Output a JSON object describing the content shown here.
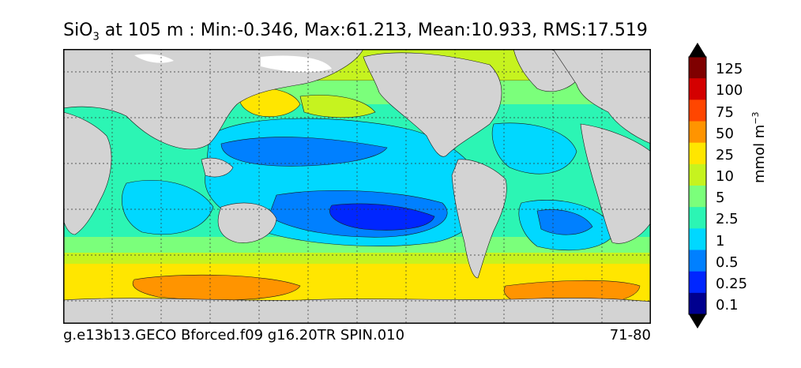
{
  "title": {
    "species": "SiO",
    "species_sub": "3",
    "rest": " at 105 m : Min:-0.346, Max:61.213, Mean:10.933, RMS:17.519"
  },
  "footer": {
    "left": "g.e13b13.GECO Bforced.f09 g16.20TR SPIN.010",
    "right": "71-80"
  },
  "colorbar": {
    "units_main": "mmol m",
    "units_sup": "−3",
    "labels": [
      "125",
      "100",
      "75",
      "50",
      "25",
      "10",
      "5",
      "2.5",
      "1",
      "0.5",
      "0.25",
      "0.1"
    ],
    "colors": [
      "#7f0000",
      "#d40000",
      "#ff4600",
      "#ff9400",
      "#ffe600",
      "#c6f31f",
      "#7bff7b",
      "#2cf5b4",
      "#00d8ff",
      "#0080ff",
      "#0026ff",
      "#00008f"
    ],
    "extend_top_color": "#000000",
    "extend_bottom_color": "#000000"
  },
  "map": {
    "land_color": "#d3d3d3",
    "ice_color": "#ffffff",
    "grid": "dashed"
  }
}
